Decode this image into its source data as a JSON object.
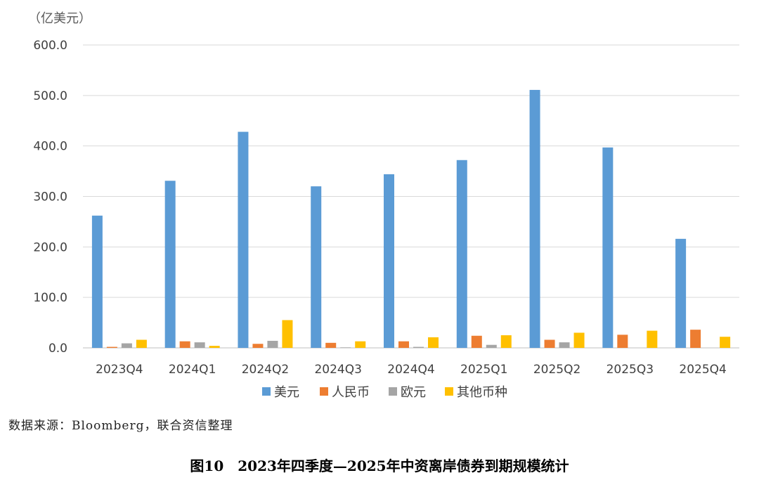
{
  "chart_data": {
    "type": "bar",
    "unit_label": "（亿美元）",
    "categories": [
      "2023Q4",
      "2024Q1",
      "2024Q2",
      "2024Q3",
      "2024Q4",
      "2025Q1",
      "2025Q2",
      "2025Q3",
      "2025Q4"
    ],
    "series": [
      {
        "name": "美元",
        "color": "#5B9BD5",
        "values": [
          262,
          331,
          428,
          320,
          344,
          372,
          511,
          397,
          216
        ]
      },
      {
        "name": "人民币",
        "color": "#ED7D31",
        "values": [
          2,
          13,
          8,
          10,
          13,
          24,
          16,
          26,
          36
        ]
      },
      {
        "name": "欧元",
        "color": "#A5A5A5",
        "values": [
          9,
          11,
          14,
          1,
          2,
          6,
          11,
          0,
          0
        ]
      },
      {
        "name": "其他币种",
        "color": "#FFC000",
        "values": [
          16,
          4,
          55,
          13,
          21,
          25,
          30,
          34,
          22
        ]
      }
    ],
    "ylim": [
      0,
      600
    ],
    "yticks": [
      0,
      100,
      200,
      300,
      400,
      500,
      600
    ],
    "ytick_labels": [
      "0.0",
      "100.0",
      "200.0",
      "300.0",
      "400.0",
      "500.0",
      "600.0"
    ],
    "grid": true,
    "legend_position": "bottom"
  },
  "source_text": "数据来源：Bloomberg，联合资信整理",
  "caption": "图10　2023年四季度—2025年中资离岸债券到期规模统计"
}
